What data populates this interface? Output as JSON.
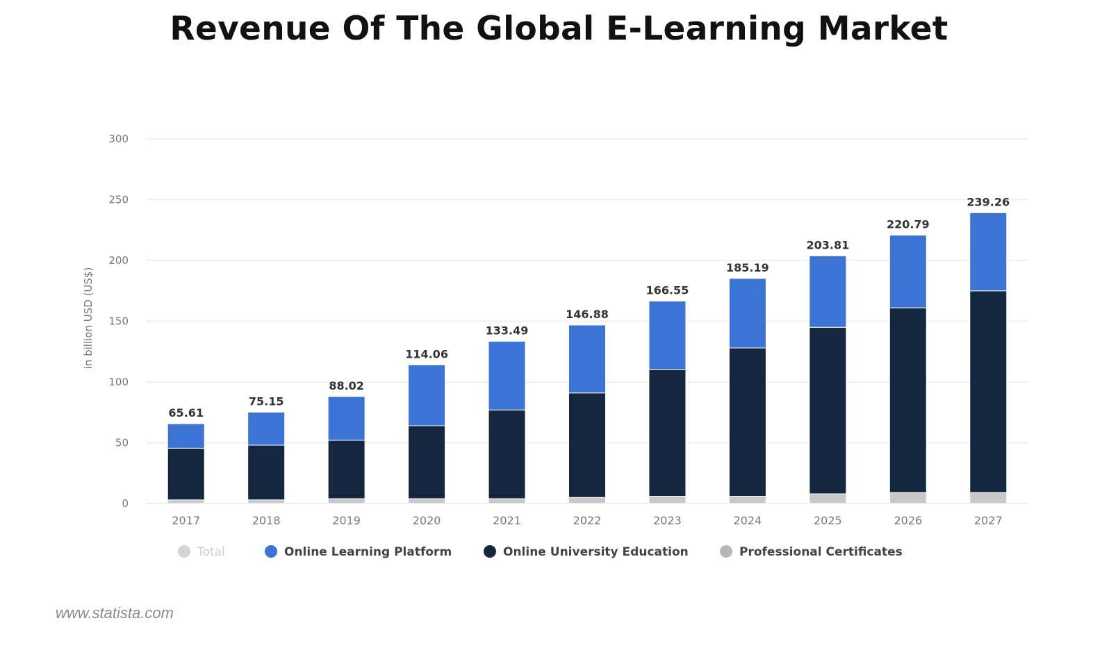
{
  "page": {
    "title": "Revenue Of The Global E-Learning Market",
    "source": "www.statista.com"
  },
  "chart_data": {
    "type": "bar",
    "stacked": true,
    "title": "Revenue Of The Global E-Learning Market",
    "xlabel": "",
    "ylabel": "in billion USD (US$)",
    "ylim": [
      0,
      300
    ],
    "yticks": [
      0,
      50,
      100,
      150,
      200,
      250,
      300
    ],
    "grid": true,
    "legend_position": "bottom",
    "categories": [
      "2017",
      "2018",
      "2019",
      "2020",
      "2021",
      "2022",
      "2023",
      "2024",
      "2025",
      "2026",
      "2027"
    ],
    "totals": [
      65.61,
      75.15,
      88.02,
      114.06,
      133.49,
      146.88,
      166.55,
      185.19,
      203.81,
      220.79,
      239.26
    ],
    "total_labels": [
      "65.61",
      "75.15",
      "88.02",
      "114.06",
      "133.49",
      "146.88",
      "166.55",
      "185.19",
      "203.81",
      "220.79",
      "239.26"
    ],
    "series": [
      {
        "name": "Professional Certificates",
        "color": "#c8c8c8",
        "values": [
          3,
          3,
          4,
          4,
          4,
          5,
          6,
          6,
          8,
          9,
          9
        ]
      },
      {
        "name": "Online University Education",
        "color": "#14273e",
        "values": [
          42.5,
          45,
          48,
          60,
          73,
          86,
          104,
          122,
          137,
          152,
          166
        ]
      },
      {
        "name": "Online Learning Platform",
        "color": "#3b74d4",
        "values": [
          20.11,
          27.15,
          36.02,
          50.06,
          56.49,
          55.88,
          56.55,
          57.19,
          58.81,
          59.79,
          64.26
        ]
      }
    ],
    "legend": [
      {
        "label": "Total",
        "color": "#d4d4d4",
        "muted": true
      },
      {
        "label": "Online Learning Platform",
        "color": "#3b74d4",
        "muted": false
      },
      {
        "label": "Online University Education",
        "color": "#14273e",
        "muted": false
      },
      {
        "label": "Professional Certificates",
        "color": "#b8b8b8",
        "muted": false
      }
    ]
  }
}
